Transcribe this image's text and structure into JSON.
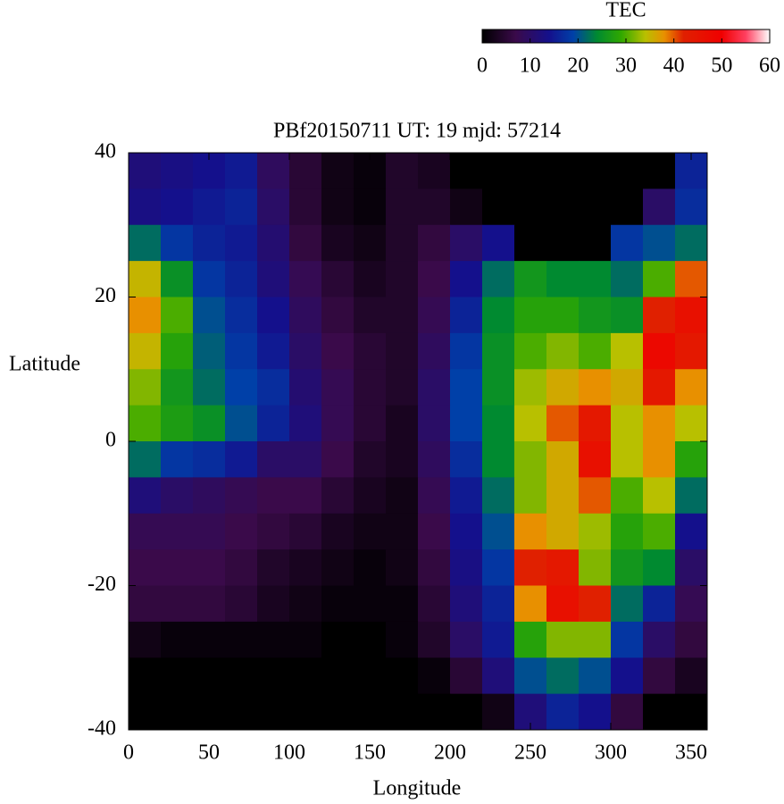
{
  "chart_data": {
    "type": "heatmap",
    "title": "PBf20150711  UT: 19  mjd: 57214",
    "x_label": "Longitude",
    "y_label": "Latitude",
    "x": [
      10,
      30,
      50,
      70,
      90,
      110,
      130,
      150,
      170,
      190,
      210,
      230,
      250,
      270,
      290,
      310,
      330,
      350
    ],
    "y": [
      37.5,
      32.5,
      27.5,
      22.5,
      17.5,
      12.5,
      7.5,
      2.5,
      -2.5,
      -7.5,
      -12.5,
      -17.5,
      -22.5,
      -27.5,
      -32.5,
      -37.5
    ],
    "z": [
      [
        12,
        13,
        14,
        15,
        9,
        5,
        2,
        1,
        4,
        3,
        0,
        0,
        0,
        0,
        0,
        0,
        0,
        16
      ],
      [
        13,
        14,
        15,
        16,
        10,
        5,
        2,
        1,
        4,
        4,
        2,
        0,
        0,
        0,
        0,
        0,
        10,
        17
      ],
      [
        22,
        18,
        16,
        15,
        11,
        6,
        3,
        2,
        4,
        6,
        10,
        14,
        0,
        0,
        0,
        18,
        20,
        22
      ],
      [
        35,
        25,
        18,
        16,
        12,
        8,
        5,
        3,
        4,
        7,
        14,
        22,
        26,
        24,
        24,
        22,
        30,
        40
      ],
      [
        38,
        30,
        20,
        17,
        14,
        9,
        6,
        4,
        4,
        8,
        16,
        24,
        28,
        28,
        26,
        25,
        42,
        46
      ],
      [
        35,
        28,
        21,
        18,
        15,
        10,
        7,
        5,
        4,
        9,
        18,
        25,
        30,
        32,
        30,
        34,
        48,
        44
      ],
      [
        32,
        26,
        22,
        19,
        17,
        11,
        8,
        5,
        4,
        10,
        19,
        25,
        33,
        36,
        38,
        36,
        44,
        38
      ],
      [
        30,
        27,
        25,
        20,
        16,
        12,
        8,
        5,
        3,
        10,
        19,
        24,
        34,
        40,
        44,
        34,
        38,
        34
      ],
      [
        22,
        18,
        17,
        15,
        10,
        10,
        7,
        4,
        3,
        9,
        17,
        24,
        32,
        36,
        46,
        34,
        38,
        28
      ],
      [
        12,
        10,
        9,
        8,
        7,
        7,
        5,
        3,
        2,
        8,
        15,
        22,
        32,
        36,
        40,
        30,
        34,
        22
      ],
      [
        8,
        8,
        8,
        7,
        6,
        5,
        3,
        2,
        2,
        7,
        14,
        20,
        38,
        36,
        33,
        28,
        30,
        14
      ],
      [
        7,
        7,
        7,
        6,
        4,
        3,
        2,
        1,
        2,
        6,
        13,
        18,
        42,
        44,
        32,
        26,
        24,
        10
      ],
      [
        6,
        6,
        6,
        5,
        3,
        2,
        1,
        1,
        1,
        5,
        12,
        16,
        38,
        46,
        42,
        22,
        16,
        8
      ],
      [
        2,
        1,
        1,
        1,
        1,
        1,
        0,
        0,
        1,
        4,
        10,
        15,
        28,
        32,
        32,
        18,
        10,
        6
      ],
      [
        0,
        0,
        0,
        0,
        0,
        0,
        0,
        0,
        0,
        1,
        5,
        12,
        20,
        22,
        20,
        14,
        6,
        3
      ],
      [
        0,
        0,
        0,
        0,
        0,
        0,
        0,
        0,
        0,
        0,
        0,
        2,
        12,
        16,
        14,
        6,
        0,
        0
      ]
    ],
    "xlim": [
      0,
      360
    ],
    "xticks": [
      0,
      50,
      100,
      150,
      200,
      250,
      300,
      350
    ],
    "ylim": [
      -40,
      40
    ],
    "yticks": [
      -40,
      -20,
      0,
      20,
      40
    ],
    "colorbar": {
      "title": "TEC",
      "lim": [
        0,
        60
      ],
      "ticks": [
        0,
        10,
        20,
        30,
        40,
        50,
        60
      ]
    },
    "colorscale": [
      [
        0,
        "#000000"
      ],
      [
        7,
        "#3a0a4a"
      ],
      [
        14,
        "#14108c"
      ],
      [
        19,
        "#0040a8"
      ],
      [
        24,
        "#008a30"
      ],
      [
        29,
        "#30a800"
      ],
      [
        34,
        "#b8c000"
      ],
      [
        38,
        "#e89000"
      ],
      [
        42,
        "#e02000"
      ],
      [
        50,
        "#f00000"
      ],
      [
        55,
        "#ff4060"
      ],
      [
        60,
        "#ffffff"
      ]
    ]
  }
}
